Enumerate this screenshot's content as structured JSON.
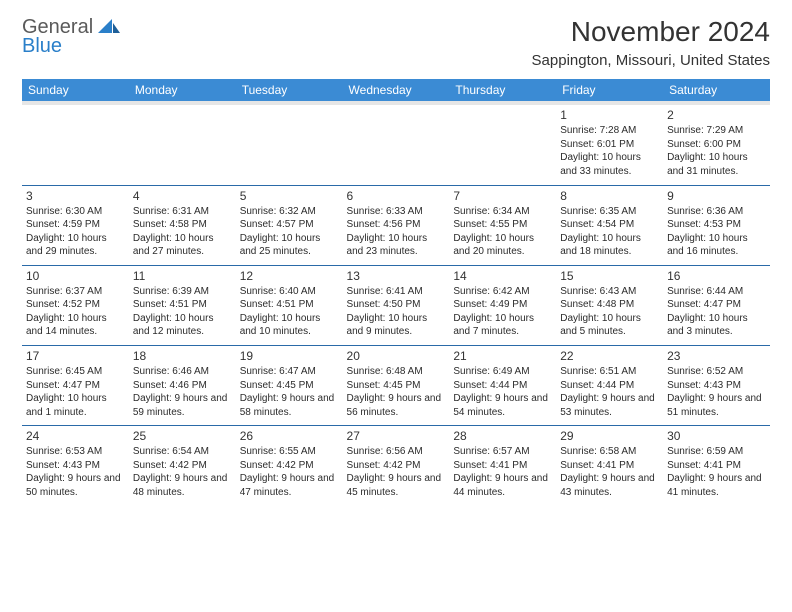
{
  "brand": {
    "line1": "General",
    "line2": "Blue"
  },
  "title": "November 2024",
  "location": "Sappington, Missouri, United States",
  "header_bg": "#3b8bd4",
  "header_fg": "#ffffff",
  "rule_color": "#2a6aa8",
  "subhead_bg": "#e6e6e6",
  "day_headers": [
    "Sunday",
    "Monday",
    "Tuesday",
    "Wednesday",
    "Thursday",
    "Friday",
    "Saturday"
  ],
  "weeks": [
    [
      {
        "day": "",
        "sunrise": "",
        "sunset": "",
        "daylight": ""
      },
      {
        "day": "",
        "sunrise": "",
        "sunset": "",
        "daylight": ""
      },
      {
        "day": "",
        "sunrise": "",
        "sunset": "",
        "daylight": ""
      },
      {
        "day": "",
        "sunrise": "",
        "sunset": "",
        "daylight": ""
      },
      {
        "day": "",
        "sunrise": "",
        "sunset": "",
        "daylight": ""
      },
      {
        "day": "1",
        "sunrise": "Sunrise: 7:28 AM",
        "sunset": "Sunset: 6:01 PM",
        "daylight": "Daylight: 10 hours and 33 minutes."
      },
      {
        "day": "2",
        "sunrise": "Sunrise: 7:29 AM",
        "sunset": "Sunset: 6:00 PM",
        "daylight": "Daylight: 10 hours and 31 minutes."
      }
    ],
    [
      {
        "day": "3",
        "sunrise": "Sunrise: 6:30 AM",
        "sunset": "Sunset: 4:59 PM",
        "daylight": "Daylight: 10 hours and 29 minutes."
      },
      {
        "day": "4",
        "sunrise": "Sunrise: 6:31 AM",
        "sunset": "Sunset: 4:58 PM",
        "daylight": "Daylight: 10 hours and 27 minutes."
      },
      {
        "day": "5",
        "sunrise": "Sunrise: 6:32 AM",
        "sunset": "Sunset: 4:57 PM",
        "daylight": "Daylight: 10 hours and 25 minutes."
      },
      {
        "day": "6",
        "sunrise": "Sunrise: 6:33 AM",
        "sunset": "Sunset: 4:56 PM",
        "daylight": "Daylight: 10 hours and 23 minutes."
      },
      {
        "day": "7",
        "sunrise": "Sunrise: 6:34 AM",
        "sunset": "Sunset: 4:55 PM",
        "daylight": "Daylight: 10 hours and 20 minutes."
      },
      {
        "day": "8",
        "sunrise": "Sunrise: 6:35 AM",
        "sunset": "Sunset: 4:54 PM",
        "daylight": "Daylight: 10 hours and 18 minutes."
      },
      {
        "day": "9",
        "sunrise": "Sunrise: 6:36 AM",
        "sunset": "Sunset: 4:53 PM",
        "daylight": "Daylight: 10 hours and 16 minutes."
      }
    ],
    [
      {
        "day": "10",
        "sunrise": "Sunrise: 6:37 AM",
        "sunset": "Sunset: 4:52 PM",
        "daylight": "Daylight: 10 hours and 14 minutes."
      },
      {
        "day": "11",
        "sunrise": "Sunrise: 6:39 AM",
        "sunset": "Sunset: 4:51 PM",
        "daylight": "Daylight: 10 hours and 12 minutes."
      },
      {
        "day": "12",
        "sunrise": "Sunrise: 6:40 AM",
        "sunset": "Sunset: 4:51 PM",
        "daylight": "Daylight: 10 hours and 10 minutes."
      },
      {
        "day": "13",
        "sunrise": "Sunrise: 6:41 AM",
        "sunset": "Sunset: 4:50 PM",
        "daylight": "Daylight: 10 hours and 9 minutes."
      },
      {
        "day": "14",
        "sunrise": "Sunrise: 6:42 AM",
        "sunset": "Sunset: 4:49 PM",
        "daylight": "Daylight: 10 hours and 7 minutes."
      },
      {
        "day": "15",
        "sunrise": "Sunrise: 6:43 AM",
        "sunset": "Sunset: 4:48 PM",
        "daylight": "Daylight: 10 hours and 5 minutes."
      },
      {
        "day": "16",
        "sunrise": "Sunrise: 6:44 AM",
        "sunset": "Sunset: 4:47 PM",
        "daylight": "Daylight: 10 hours and 3 minutes."
      }
    ],
    [
      {
        "day": "17",
        "sunrise": "Sunrise: 6:45 AM",
        "sunset": "Sunset: 4:47 PM",
        "daylight": "Daylight: 10 hours and 1 minute."
      },
      {
        "day": "18",
        "sunrise": "Sunrise: 6:46 AM",
        "sunset": "Sunset: 4:46 PM",
        "daylight": "Daylight: 9 hours and 59 minutes."
      },
      {
        "day": "19",
        "sunrise": "Sunrise: 6:47 AM",
        "sunset": "Sunset: 4:45 PM",
        "daylight": "Daylight: 9 hours and 58 minutes."
      },
      {
        "day": "20",
        "sunrise": "Sunrise: 6:48 AM",
        "sunset": "Sunset: 4:45 PM",
        "daylight": "Daylight: 9 hours and 56 minutes."
      },
      {
        "day": "21",
        "sunrise": "Sunrise: 6:49 AM",
        "sunset": "Sunset: 4:44 PM",
        "daylight": "Daylight: 9 hours and 54 minutes."
      },
      {
        "day": "22",
        "sunrise": "Sunrise: 6:51 AM",
        "sunset": "Sunset: 4:44 PM",
        "daylight": "Daylight: 9 hours and 53 minutes."
      },
      {
        "day": "23",
        "sunrise": "Sunrise: 6:52 AM",
        "sunset": "Sunset: 4:43 PM",
        "daylight": "Daylight: 9 hours and 51 minutes."
      }
    ],
    [
      {
        "day": "24",
        "sunrise": "Sunrise: 6:53 AM",
        "sunset": "Sunset: 4:43 PM",
        "daylight": "Daylight: 9 hours and 50 minutes."
      },
      {
        "day": "25",
        "sunrise": "Sunrise: 6:54 AM",
        "sunset": "Sunset: 4:42 PM",
        "daylight": "Daylight: 9 hours and 48 minutes."
      },
      {
        "day": "26",
        "sunrise": "Sunrise: 6:55 AM",
        "sunset": "Sunset: 4:42 PM",
        "daylight": "Daylight: 9 hours and 47 minutes."
      },
      {
        "day": "27",
        "sunrise": "Sunrise: 6:56 AM",
        "sunset": "Sunset: 4:42 PM",
        "daylight": "Daylight: 9 hours and 45 minutes."
      },
      {
        "day": "28",
        "sunrise": "Sunrise: 6:57 AM",
        "sunset": "Sunset: 4:41 PM",
        "daylight": "Daylight: 9 hours and 44 minutes."
      },
      {
        "day": "29",
        "sunrise": "Sunrise: 6:58 AM",
        "sunset": "Sunset: 4:41 PM",
        "daylight": "Daylight: 9 hours and 43 minutes."
      },
      {
        "day": "30",
        "sunrise": "Sunrise: 6:59 AM",
        "sunset": "Sunset: 4:41 PM",
        "daylight": "Daylight: 9 hours and 41 minutes."
      }
    ]
  ]
}
